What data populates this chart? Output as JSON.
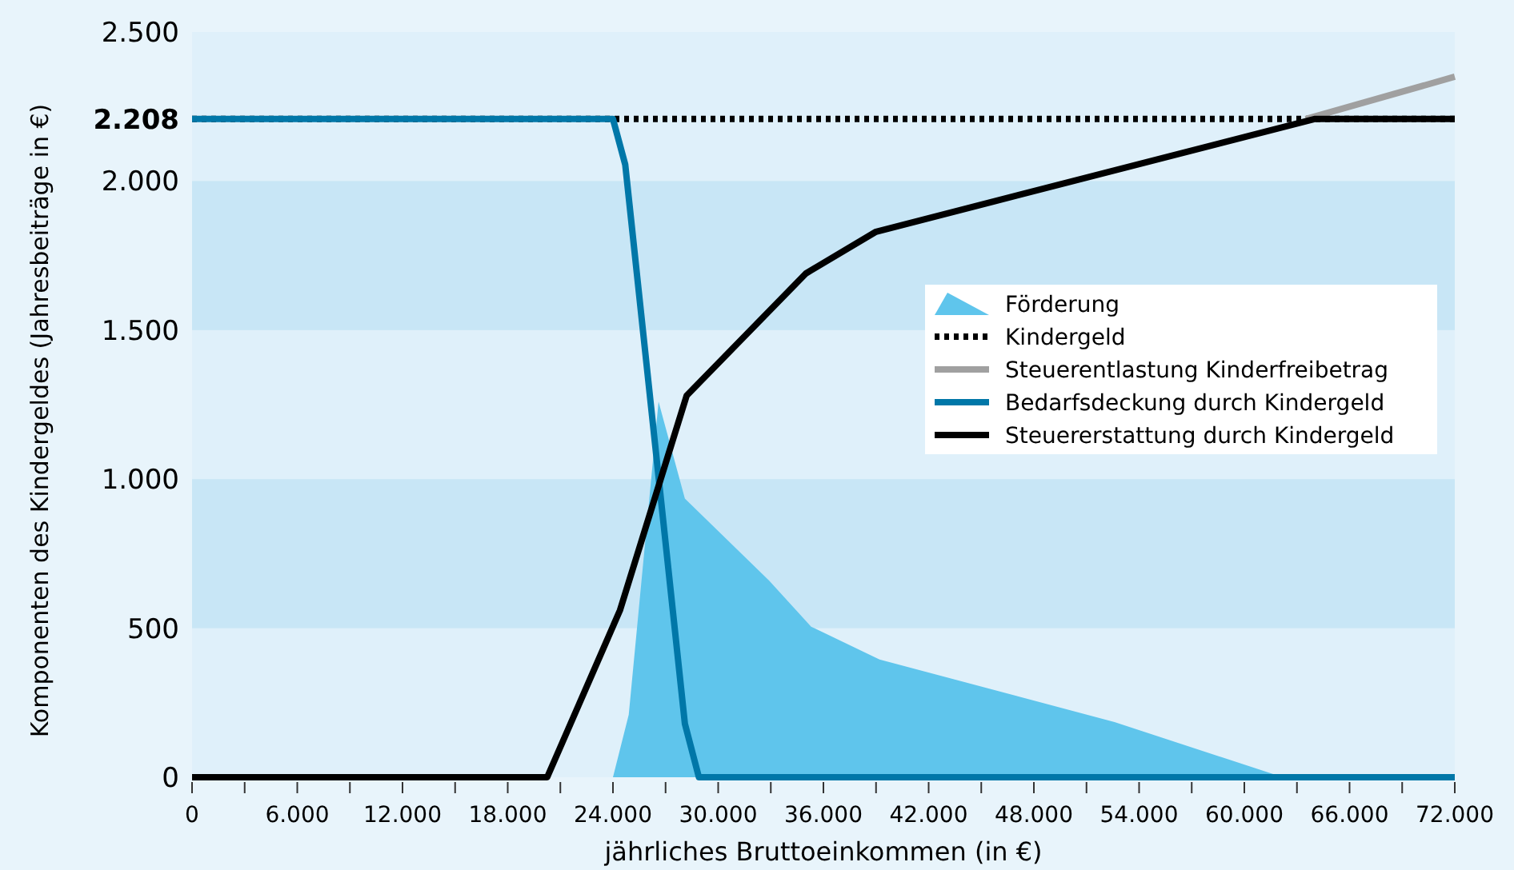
{
  "chart_data": {
    "type": "line",
    "xlabel": "jährliches Bruttoeinkommen (in €)",
    "ylabel": "Komponenten des Kindergeldes (Jahresbeiträge in €)",
    "xlim": [
      0,
      72000
    ],
    "ylim": [
      0,
      2500
    ],
    "xticks": [
      {
        "value": 0,
        "label": "0"
      },
      {
        "value": 3000,
        "label": null
      },
      {
        "value": 6000,
        "label": "6.000"
      },
      {
        "value": 9000,
        "label": null
      },
      {
        "value": 12000,
        "label": "12.000"
      },
      {
        "value": 15000,
        "label": null
      },
      {
        "value": 18000,
        "label": "18.000"
      },
      {
        "value": 21000,
        "label": null
      },
      {
        "value": 24000,
        "label": "24.000"
      },
      {
        "value": 27000,
        "label": null
      },
      {
        "value": 30000,
        "label": "30.000"
      },
      {
        "value": 33000,
        "label": null
      },
      {
        "value": 36000,
        "label": "36.000"
      },
      {
        "value": 39000,
        "label": null
      },
      {
        "value": 42000,
        "label": "42.000"
      },
      {
        "value": 45000,
        "label": null
      },
      {
        "value": 48000,
        "label": "48.000"
      },
      {
        "value": 51000,
        "label": null
      },
      {
        "value": 54000,
        "label": "54.000"
      },
      {
        "value": 57000,
        "label": null
      },
      {
        "value": 60000,
        "label": "60.000"
      },
      {
        "value": 63000,
        "label": null
      },
      {
        "value": 66000,
        "label": "66.000"
      },
      {
        "value": 69000,
        "label": null
      },
      {
        "value": 72000,
        "label": "72.000"
      }
    ],
    "yticks": [
      0,
      {
        "value": 500,
        "label": "500"
      },
      {
        "value": 1000,
        "label": "1.000"
      },
      {
        "value": 1500,
        "label": "1.500"
      },
      {
        "value": 2000,
        "label": "2.000"
      },
      {
        "value": 2208,
        "label": "2.208"
      },
      {
        "value": 2500,
        "label": "2.500"
      }
    ],
    "bands": [
      {
        "axis": "y",
        "from": 500,
        "to": 1000,
        "color": "#c8e6f6"
      },
      {
        "axis": "y",
        "from": 1500,
        "to": 2000,
        "color": "#c8e6f6"
      }
    ],
    "grid": false,
    "legend": "right",
    "series": [
      {
        "name": "Förderung",
        "type": "area",
        "color": "#5fc5ec",
        "x": [
          24000,
          24900,
          26600,
          28100,
          32900,
          35300,
          39200,
          52600,
          62200
        ],
        "values": [
          0,
          210,
          1260,
          935,
          660,
          505,
          395,
          185,
          0
        ]
      },
      {
        "name": "Kindergeld",
        "type": "line",
        "line_style": "dotted",
        "color": "#000000",
        "x": [
          0,
          72000
        ],
        "values": [
          2208,
          2208
        ]
      },
      {
        "name": "Steuerentlastung Kinderfreibetrag",
        "type": "line",
        "color": "#a0a0a0",
        "x": [
          63500,
          72000
        ],
        "values": [
          2208,
          2350
        ]
      },
      {
        "name": "Bedarfsdeckung durch Kindergeld",
        "type": "line",
        "color": "#0077a8",
        "x": [
          0,
          24000,
          24700,
          28100,
          28900,
          72000
        ],
        "values": [
          2208,
          2208,
          2055,
          180,
          0,
          0
        ]
      },
      {
        "name": "Steuererstattung durch Kindergeld",
        "type": "line",
        "color": "#000000",
        "x": [
          0,
          20250,
          24400,
          28200,
          35000,
          39000,
          64000,
          72000
        ],
        "values": [
          0,
          0,
          560,
          1280,
          1690,
          1830,
          2208,
          2208
        ]
      }
    ]
  }
}
